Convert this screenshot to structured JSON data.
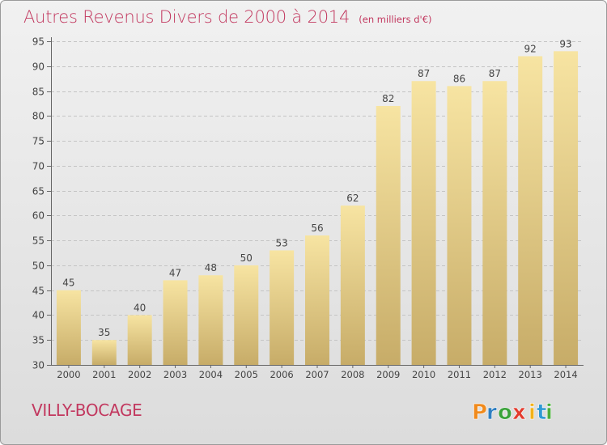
{
  "header": {
    "title": "Autres Revenus Divers de 2000 à 2014",
    "unit": "(en milliers d'€)"
  },
  "commune": "VILLY-BOCAGE",
  "brand": {
    "letters": [
      "P",
      "r",
      "o",
      "x",
      "i",
      "t",
      "i"
    ],
    "colors": [
      "#f08a1c",
      "#2f7fc1",
      "#3aa23a",
      "#e33b2e",
      "#f2b21a",
      "#2f9ad4",
      "#4cae3c"
    ]
  },
  "colors": {
    "bar_light": "#f7e4a2",
    "bar_dark": "#c7ac68",
    "text": "#444444",
    "accent": "#c2385f"
  },
  "chart_data": {
    "type": "bar",
    "title": "Autres Revenus Divers de 2000 à 2014",
    "categories": [
      "2000",
      "2001",
      "2002",
      "2003",
      "2004",
      "2005",
      "2006",
      "2007",
      "2008",
      "2009",
      "2010",
      "2011",
      "2012",
      "2013",
      "2014"
    ],
    "values": [
      45,
      35,
      40,
      47,
      48,
      50,
      53,
      56,
      62,
      82,
      87,
      86,
      87,
      92,
      93
    ],
    "ylim": [
      30,
      95
    ],
    "yticks": [
      30,
      35,
      40,
      45,
      50,
      55,
      60,
      65,
      70,
      75,
      80,
      85,
      90,
      95
    ],
    "grid": true,
    "data_labels": true
  }
}
